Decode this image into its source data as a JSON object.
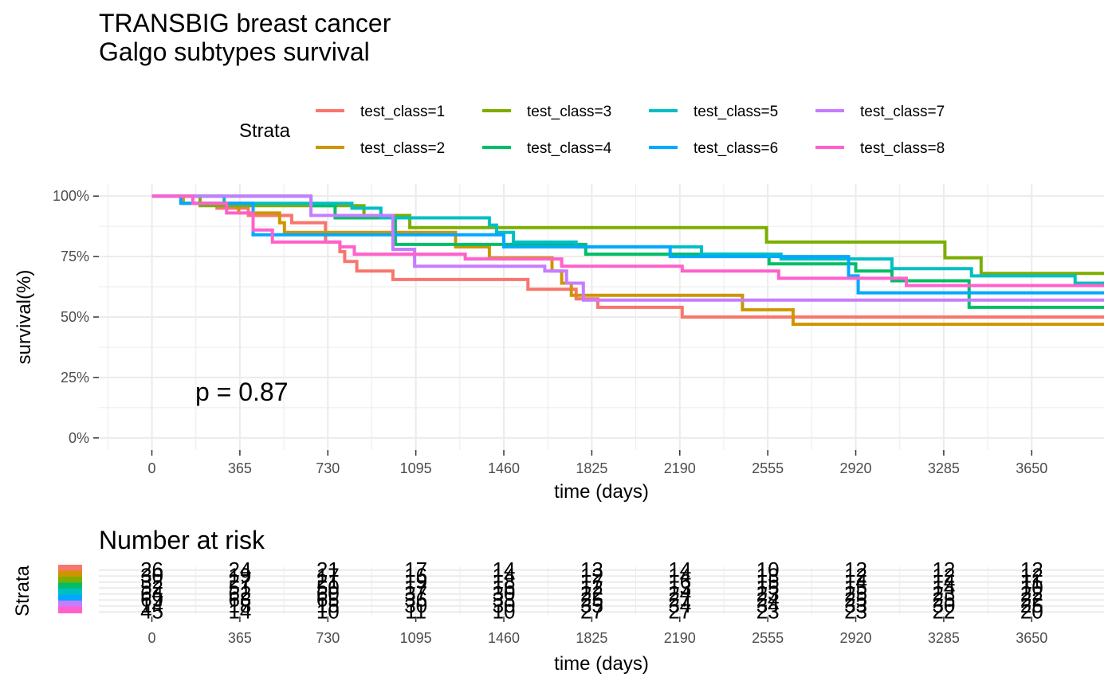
{
  "chart_data": [
    {
      "type": "line",
      "title_lines": [
        "TRANSBIG breast cancer",
        " Galgo subtypes survival"
      ],
      "xlabel": "time (days)",
      "ylabel": "survival(%)",
      "xlim": [
        -220,
        3950
      ],
      "ylim": [
        -0.05,
        1.05
      ],
      "x_ticks": [
        0,
        365,
        730,
        1095,
        1460,
        1825,
        2190,
        2555,
        2920,
        3285,
        3650
      ],
      "y_ticks": [
        0,
        0.25,
        0.5,
        0.75,
        1.0
      ],
      "y_tick_labels": [
        "0%",
        "25%",
        "50%",
        "75%",
        "100%"
      ],
      "grid": true,
      "legend": {
        "title": "Strata",
        "position": "top"
      },
      "annotation": "p = 0.87",
      "annotation_pos": [
        180,
        0.19
      ],
      "series": [
        {
          "name": "test_class=1",
          "color": "#F8766D",
          "steps": [
            [
              0,
              1.0
            ],
            [
              130,
              0.97
            ],
            [
              270,
              0.95
            ],
            [
              400,
              0.92
            ],
            [
              580,
              0.89
            ],
            [
              720,
              0.81
            ],
            [
              780,
              0.77
            ],
            [
              800,
              0.73
            ],
            [
              850,
              0.69
            ],
            [
              1000,
              0.655
            ],
            [
              1560,
              0.615
            ],
            [
              1760,
              0.575
            ],
            [
              1850,
              0.54
            ],
            [
              2200,
              0.5
            ],
            [
              2700,
              0.5
            ],
            [
              3950,
              0.5
            ]
          ]
        },
        {
          "name": "test_class=2",
          "color": "#CD9600",
          "steps": [
            [
              0,
              1.0
            ],
            [
              130,
              0.97
            ],
            [
              360,
              0.93
            ],
            [
              530,
              0.89
            ],
            [
              550,
              0.85
            ],
            [
              1260,
              0.79
            ],
            [
              1400,
              0.745
            ],
            [
              1660,
              0.69
            ],
            [
              1700,
              0.64
            ],
            [
              1740,
              0.59
            ],
            [
              2450,
              0.53
            ],
            [
              2550,
              0.53
            ],
            [
              2660,
              0.47
            ],
            [
              3950,
              0.47
            ]
          ]
        },
        {
          "name": "test_class=3",
          "color": "#7CAE00",
          "steps": [
            [
              0,
              1.0
            ],
            [
              200,
              0.96
            ],
            [
              360,
              0.96
            ],
            [
              600,
              0.96
            ],
            [
              880,
              0.92
            ],
            [
              1070,
              0.87
            ],
            [
              1120,
              0.87
            ],
            [
              2550,
              0.81
            ],
            [
              3290,
              0.745
            ],
            [
              3440,
              0.68
            ],
            [
              3950,
              0.68
            ]
          ]
        },
        {
          "name": "test_class=4",
          "color": "#00BE67",
          "steps": [
            [
              0,
              1.0
            ],
            [
              660,
              0.96
            ],
            [
              760,
              0.91
            ],
            [
              1010,
              0.8
            ],
            [
              1130,
              0.8
            ],
            [
              1800,
              0.76
            ],
            [
              2560,
              0.72
            ],
            [
              2920,
              0.69
            ],
            [
              3070,
              0.65
            ],
            [
              3390,
              0.54
            ],
            [
              3950,
              0.54
            ]
          ]
        },
        {
          "name": "test_class=5",
          "color": "#00BFC4",
          "steps": [
            [
              0,
              1.0
            ],
            [
              300,
              0.97
            ],
            [
              750,
              0.97
            ],
            [
              830,
              0.95
            ],
            [
              950,
              0.91
            ],
            [
              1400,
              0.88
            ],
            [
              1430,
              0.85
            ],
            [
              1500,
              0.81
            ],
            [
              1760,
              0.79
            ],
            [
              2280,
              0.76
            ],
            [
              2440,
              0.76
            ],
            [
              2610,
              0.74
            ],
            [
              3070,
              0.7
            ],
            [
              3400,
              0.67
            ],
            [
              3830,
              0.64
            ],
            [
              3950,
              0.64
            ]
          ]
        },
        {
          "name": "test_class=6",
          "color": "#00A9FF",
          "steps": [
            [
              0,
              1.0
            ],
            [
              120,
              0.97
            ],
            [
              420,
              0.84
            ],
            [
              1460,
              0.79
            ],
            [
              2150,
              0.75
            ],
            [
              2890,
              0.67
            ],
            [
              2930,
              0.6
            ],
            [
              3090,
              0.6
            ],
            [
              3390,
              0.6
            ],
            [
              3950,
              0.6
            ]
          ]
        },
        {
          "name": "test_class=7",
          "color": "#C77CFF",
          "steps": [
            [
              0,
              1.0
            ],
            [
              630,
              1.0
            ],
            [
              660,
              0.92
            ],
            [
              1000,
              0.78
            ],
            [
              1090,
              0.71
            ],
            [
              1630,
              0.69
            ],
            [
              1720,
              0.64
            ],
            [
              1790,
              0.57
            ],
            [
              1970,
              0.57
            ],
            [
              3950,
              0.57
            ]
          ]
        },
        {
          "name": "test_class=8",
          "color": "#FF61CC",
          "steps": [
            [
              0,
              1.0
            ],
            [
              170,
              0.97
            ],
            [
              310,
              0.93
            ],
            [
              420,
              0.86
            ],
            [
              500,
              0.81
            ],
            [
              780,
              0.79
            ],
            [
              840,
              0.76
            ],
            [
              1300,
              0.74
            ],
            [
              1700,
              0.71
            ],
            [
              2200,
              0.69
            ],
            [
              2600,
              0.66
            ],
            [
              3130,
              0.63
            ],
            [
              3950,
              0.63
            ]
          ]
        }
      ]
    },
    {
      "type": "table",
      "title": "Number at risk",
      "ylabel": "Strata",
      "xlabel": "time (days)",
      "x_ticks": [
        0,
        365,
        730,
        1095,
        1460,
        1825,
        2190,
        2555,
        2920,
        3285,
        3650
      ],
      "rows": [
        {
          "name": "test_class=1",
          "color": "#F8766D",
          "values": [
            "26",
            "24",
            "21",
            "17",
            "14",
            "13",
            "14",
            "10",
            "12",
            "12",
            "12"
          ]
        },
        {
          "name": "test_class=2",
          "color": "#CD9600",
          "values": [
            "30",
            "19",
            "17",
            "16",
            "14",
            "12",
            "14",
            "13",
            "12",
            "12",
            "12"
          ]
        },
        {
          "name": "test_class=3",
          "color": "#7CAE00",
          "values": [
            "32",
            "27",
            "21",
            "19",
            "18",
            "17",
            "16",
            "15",
            "14",
            "14",
            "11"
          ]
        },
        {
          "name": "test_class=4",
          "color": "#00BE67",
          "values": [
            "52",
            "51",
            "50",
            "17",
            "16",
            "12",
            "13",
            "15",
            "15",
            "14",
            "10"
          ]
        },
        {
          "name": "test_class=5",
          "color": "#00BFC4",
          "values": [
            "64",
            "62",
            "60",
            "37",
            "30",
            "22",
            "24",
            "23",
            "25",
            "23",
            "22"
          ]
        },
        {
          "name": "test_class=6",
          "color": "#00A9FF",
          "values": [
            "69",
            "68",
            "65",
            "36",
            "33",
            "25",
            "27",
            "24",
            "25",
            "25",
            "22"
          ]
        },
        {
          "name": "test_class=7",
          "color": "#C77CFF",
          "values": [
            "14",
            "18",
            "15",
            "30",
            "30",
            "35",
            "34",
            "34",
            "33",
            "30",
            "25"
          ]
        },
        {
          "name": "test_class=8",
          "color": "#FF61CC",
          "values": [
            "45",
            "14",
            "10",
            "11",
            "10",
            "27",
            "27",
            "23",
            "23",
            "22",
            "20"
          ]
        }
      ]
    }
  ]
}
